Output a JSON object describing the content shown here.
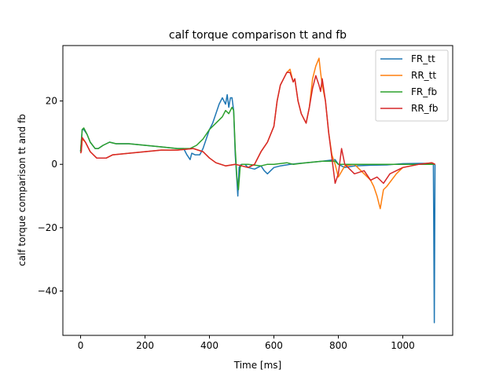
{
  "chart_data": {
    "type": "line",
    "title": "calf torque comparison tt and fb",
    "xlabel": "Time [ms]",
    "ylabel": "calf torque comparison tt and fb",
    "xlim": [
      -55,
      1155
    ],
    "ylim": [
      -54,
      37.5
    ],
    "xticks": [
      0,
      200,
      400,
      600,
      800,
      1000
    ],
    "xtick_labels": [
      "0",
      "200",
      "400",
      "600",
      "800",
      "1000"
    ],
    "yticks": [
      -40,
      -20,
      0,
      20
    ],
    "ytick_labels": [
      "−40",
      "−20",
      "0",
      "20"
    ],
    "grid": false,
    "legend_position": "top-right",
    "series": [
      {
        "name": "FR_tt",
        "color": "#1f77b4",
        "x": [
          0,
          5,
          10,
          20,
          30,
          45,
          55,
          70,
          90,
          110,
          150,
          200,
          250,
          300,
          320,
          330,
          340,
          345,
          355,
          370,
          380,
          390,
          400,
          410,
          420,
          430,
          440,
          450,
          455,
          460,
          465,
          470,
          475,
          480,
          485,
          488,
          492,
          495,
          500,
          510,
          520,
          540,
          560,
          570,
          580,
          600,
          620,
          650,
          700,
          750,
          790,
          800,
          820,
          850,
          900,
          950,
          1000,
          1050,
          1080,
          1090,
          1095,
          1098,
          1100
        ],
        "y": [
          4,
          11,
          11,
          9.5,
          7,
          5,
          5,
          6,
          7,
          6.5,
          6.5,
          6,
          5.5,
          5,
          5,
          3,
          1.5,
          3.5,
          3,
          3,
          5,
          8,
          11,
          13,
          16,
          19,
          21,
          19,
          22,
          18,
          21,
          21,
          17,
          3,
          -5,
          -10,
          -1,
          -0.3,
          0,
          0,
          -1,
          -1.5,
          -0.5,
          -2,
          -3,
          -1,
          -0.5,
          0,
          0.5,
          1,
          1.5,
          0,
          -1,
          -0.5,
          -0.3,
          -0.2,
          0.2,
          0.3,
          0.3,
          0.3,
          0.1,
          -50,
          0
        ]
      },
      {
        "name": "RR_tt",
        "color": "#ff7f0e",
        "x": [
          0,
          2,
          5,
          15,
          30,
          50,
          60,
          80,
          100,
          150,
          200,
          250,
          300,
          350,
          380,
          400,
          420,
          450,
          480,
          500,
          520,
          540,
          560,
          580,
          600,
          610,
          620,
          630,
          640,
          650,
          660,
          665,
          675,
          685,
          695,
          700,
          710,
          720,
          730,
          740,
          745,
          750,
          760,
          770,
          780,
          790,
          800,
          820,
          850,
          880,
          900,
          910,
          920,
          930,
          940,
          950,
          980,
          1000,
          1050,
          1090,
          1100
        ],
        "y": [
          3.5,
          4,
          8,
          7,
          4,
          2,
          2,
          2,
          3,
          3.5,
          4,
          4.5,
          4.5,
          5,
          4,
          2,
          0.5,
          -0.5,
          0,
          -0.5,
          -1,
          0,
          4,
          7,
          12,
          20,
          25,
          27,
          29,
          30,
          26,
          27,
          20,
          16,
          14,
          13,
          18,
          27,
          31,
          33.5,
          29,
          25,
          20,
          10,
          3,
          0,
          -4,
          -0.5,
          0,
          -3,
          -5,
          -7,
          -10,
          -14,
          -8,
          -7,
          -3,
          -1,
          0,
          0.5,
          0
        ]
      },
      {
        "name": "FR_fb",
        "color": "#2ca02c",
        "x": [
          0,
          5,
          10,
          20,
          30,
          45,
          55,
          70,
          90,
          110,
          150,
          200,
          250,
          300,
          340,
          360,
          380,
          400,
          420,
          440,
          450,
          460,
          470,
          475,
          480,
          485,
          490,
          495,
          500,
          520,
          560,
          580,
          600,
          640,
          660,
          700,
          750,
          790,
          800,
          850,
          900,
          1000,
          1100
        ],
        "y": [
          4,
          11,
          11.5,
          9.5,
          7,
          5,
          5,
          6,
          7,
          6.5,
          6.5,
          6,
          5.5,
          5,
          5,
          6,
          8,
          11,
          13,
          15,
          17,
          16,
          18,
          17,
          5,
          -4,
          -8,
          -1,
          0,
          0,
          -0.5,
          0,
          0,
          0.5,
          0,
          0.5,
          1,
          1,
          0,
          0,
          0,
          0,
          0
        ]
      },
      {
        "name": "RR_fb",
        "color": "#d62728",
        "x": [
          0,
          2,
          5,
          15,
          30,
          50,
          60,
          80,
          100,
          150,
          200,
          250,
          300,
          350,
          380,
          400,
          420,
          450,
          480,
          500,
          520,
          540,
          560,
          580,
          600,
          610,
          620,
          630,
          640,
          650,
          660,
          665,
          675,
          685,
          695,
          700,
          710,
          720,
          730,
          740,
          745,
          750,
          760,
          770,
          780,
          790,
          800,
          810,
          820,
          850,
          880,
          900,
          920,
          940,
          960,
          980,
          1000,
          1050,
          1090,
          1100
        ],
        "y": [
          3.5,
          4,
          8.5,
          7,
          4,
          2,
          2,
          2,
          3,
          3.5,
          4,
          4.5,
          4.5,
          5,
          4,
          2,
          0.5,
          -0.5,
          0,
          -0.5,
          -1,
          0,
          4,
          7,
          12,
          20,
          25,
          27,
          29,
          29,
          26,
          27,
          20,
          16,
          14,
          13,
          18,
          24,
          28,
          25,
          23,
          27,
          20,
          10,
          2,
          -6,
          -3,
          5,
          0,
          -3,
          -2,
          -5,
          -4,
          -6,
          -3,
          -2,
          -1,
          0,
          0.5,
          0
        ]
      }
    ]
  }
}
